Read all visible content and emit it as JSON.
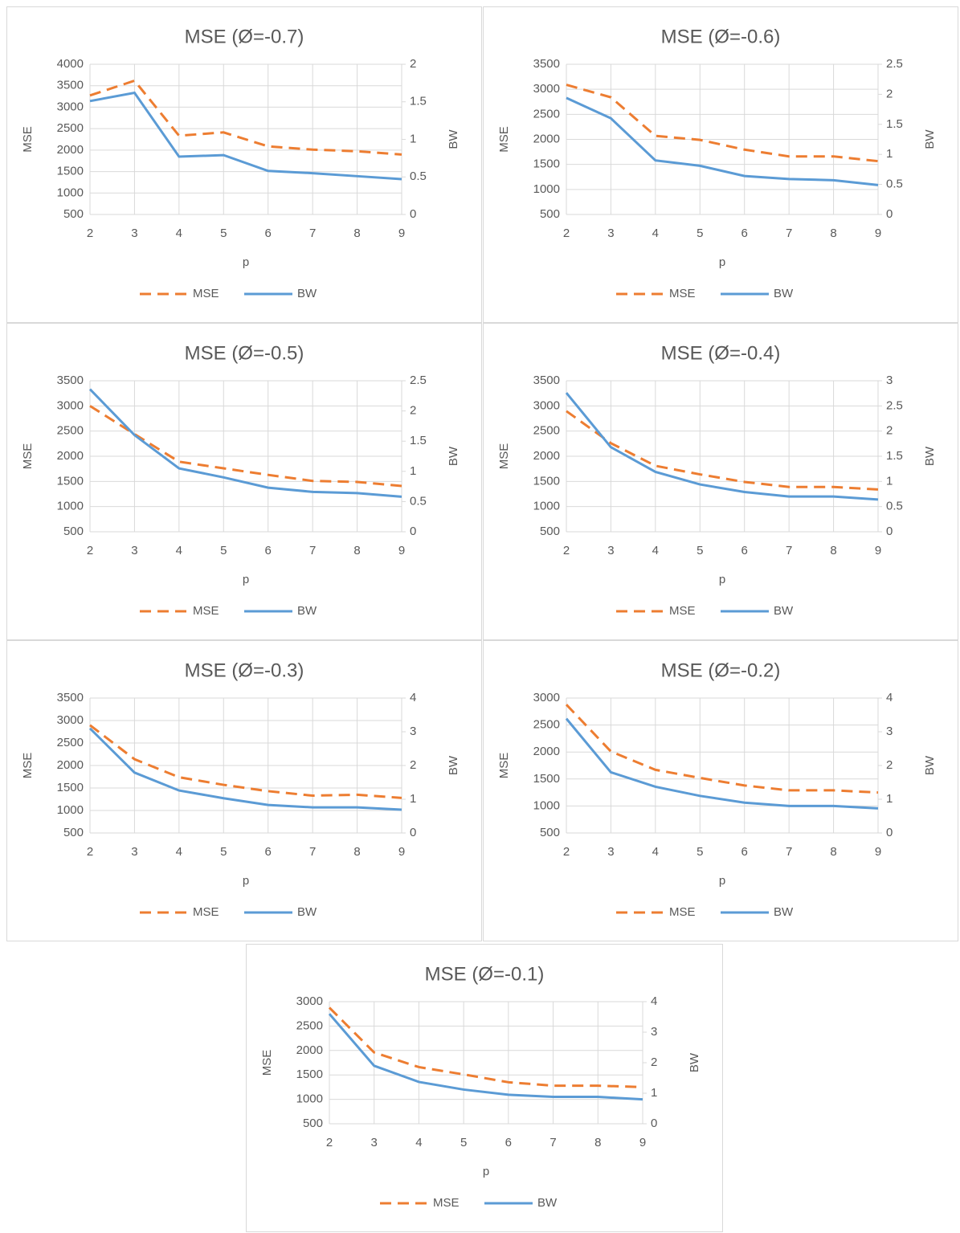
{
  "chart_data": [
    {
      "type": "line",
      "title": "MSE (Ø=-0.7)",
      "x_label": "p",
      "y_label": "MSE",
      "y2_label": "BW",
      "x": [
        2,
        3,
        4,
        5,
        6,
        7,
        8,
        9
      ],
      "xlim": [
        2,
        9
      ],
      "xticks": [
        2,
        3,
        4,
        5,
        6,
        7,
        8,
        9
      ],
      "ylim": [
        500,
        4000
      ],
      "yticks": [
        500,
        1000,
        1500,
        2000,
        2500,
        3000,
        3500,
        4000
      ],
      "y2lim": [
        0,
        2
      ],
      "y2ticks": [
        0,
        0.5,
        1,
        1.5,
        2
      ],
      "grid": true,
      "legend": "bottom",
      "series": [
        {
          "name": "MSE",
          "color": "#ed7d31",
          "line_style": "dashed",
          "values": [
            3273,
            3617,
            2336,
            2413,
            2087,
            2011,
            1973,
            1896
          ]
        },
        {
          "name": "BW",
          "color": "#5b9bd5",
          "line_style": "solid",
          "axis": "y2",
          "values": [
            1.51,
            1.62,
            0.77,
            0.79,
            0.58,
            0.55,
            0.51,
            0.47
          ]
        }
      ]
    },
    {
      "type": "line",
      "title": "MSE (Ø=-0.6)",
      "x_label": "p",
      "y_label": "MSE",
      "y2_label": "BW",
      "x": [
        2,
        3,
        4,
        5,
        6,
        7,
        8,
        9
      ],
      "xlim": [
        2,
        9
      ],
      "xticks": [
        2,
        3,
        4,
        5,
        6,
        7,
        8,
        9
      ],
      "ylim": [
        500,
        3500
      ],
      "yticks": [
        500,
        1000,
        1500,
        2000,
        2500,
        3000,
        3500
      ],
      "y2lim": [
        0,
        2.5
      ],
      "y2ticks": [
        0,
        0.5,
        1,
        1.5,
        2,
        2.5
      ],
      "grid": true,
      "legend": "bottom",
      "series": [
        {
          "name": "MSE",
          "color": "#ed7d31",
          "line_style": "dashed",
          "values": [
            3090,
            2840,
            2070,
            1990,
            1795,
            1660,
            1660,
            1565
          ]
        },
        {
          "name": "BW",
          "color": "#5b9bd5",
          "line_style": "solid",
          "axis": "y2",
          "values": [
            1.94,
            1.6,
            0.9,
            0.81,
            0.64,
            0.59,
            0.57,
            0.49
          ]
        }
      ]
    },
    {
      "type": "line",
      "title": "MSE (Ø=-0.5)",
      "x_label": "p",
      "y_label": "MSE",
      "y2_label": "BW",
      "x": [
        2,
        3,
        4,
        5,
        6,
        7,
        8,
        9
      ],
      "xlim": [
        2,
        9
      ],
      "xticks": [
        2,
        3,
        4,
        5,
        6,
        7,
        8,
        9
      ],
      "ylim": [
        500,
        3500
      ],
      "yticks": [
        500,
        1000,
        1500,
        2000,
        2500,
        3000,
        3500
      ],
      "y2lim": [
        0,
        2.5
      ],
      "y2ticks": [
        0,
        0.5,
        1,
        1.5,
        2,
        2.5
      ],
      "grid": true,
      "legend": "bottom",
      "series": [
        {
          "name": "MSE",
          "color": "#ed7d31",
          "line_style": "dashed",
          "values": [
            3000,
            2440,
            1892,
            1760,
            1630,
            1510,
            1490,
            1410
          ]
        },
        {
          "name": "BW",
          "color": "#5b9bd5",
          "line_style": "solid",
          "axis": "y2",
          "values": [
            2.36,
            1.6,
            1.05,
            0.9,
            0.73,
            0.66,
            0.64,
            0.58
          ]
        }
      ]
    },
    {
      "type": "line",
      "title": "MSE (Ø=-0.4)",
      "x_label": "p",
      "y_label": "MSE",
      "y2_label": "BW",
      "x": [
        2,
        3,
        4,
        5,
        6,
        7,
        8,
        9
      ],
      "xlim": [
        2,
        9
      ],
      "xticks": [
        2,
        3,
        4,
        5,
        6,
        7,
        8,
        9
      ],
      "ylim": [
        500,
        3500
      ],
      "yticks": [
        500,
        1000,
        1500,
        2000,
        2500,
        3000,
        3500
      ],
      "y2lim": [
        0,
        3
      ],
      "y2ticks": [
        0,
        0.5,
        1,
        1.5,
        2,
        2.5,
        3
      ],
      "grid": true,
      "legend": "bottom",
      "series": [
        {
          "name": "MSE",
          "color": "#ed7d31",
          "line_style": "dashed",
          "values": [
            2897,
            2260,
            1810,
            1640,
            1490,
            1390,
            1390,
            1340
          ]
        },
        {
          "name": "BW",
          "color": "#5b9bd5",
          "line_style": "solid",
          "axis": "y2",
          "values": [
            2.76,
            1.68,
            1.19,
            0.94,
            0.79,
            0.7,
            0.7,
            0.64
          ]
        }
      ]
    },
    {
      "type": "line",
      "title": "MSE (Ø=-0.3)",
      "x_label": "p",
      "y_label": "MSE",
      "y2_label": "BW",
      "x": [
        2,
        3,
        4,
        5,
        6,
        7,
        8,
        9
      ],
      "xlim": [
        2,
        9
      ],
      "xticks": [
        2,
        3,
        4,
        5,
        6,
        7,
        8,
        9
      ],
      "ylim": [
        500,
        3500
      ],
      "yticks": [
        500,
        1000,
        1500,
        2000,
        2500,
        3000,
        3500
      ],
      "y2lim": [
        0,
        4
      ],
      "y2ticks": [
        0,
        1,
        2,
        3,
        4
      ],
      "grid": true,
      "legend": "bottom",
      "series": [
        {
          "name": "MSE",
          "color": "#ed7d31",
          "line_style": "dashed",
          "values": [
            2897,
            2140,
            1740,
            1570,
            1430,
            1330,
            1350,
            1280
          ]
        },
        {
          "name": "BW",
          "color": "#5b9bd5",
          "line_style": "solid",
          "axis": "y2",
          "values": [
            3.1,
            1.79,
            1.26,
            1.03,
            0.83,
            0.76,
            0.76,
            0.69
          ]
        }
      ]
    },
    {
      "type": "line",
      "title": "MSE (Ø=-0.2)",
      "x_label": "p",
      "y_label": "MSE",
      "y2_label": "BW",
      "x": [
        2,
        3,
        4,
        5,
        6,
        7,
        8,
        9
      ],
      "xlim": [
        2,
        9
      ],
      "xticks": [
        2,
        3,
        4,
        5,
        6,
        7,
        8,
        9
      ],
      "ylim": [
        500,
        3000
      ],
      "yticks": [
        500,
        1000,
        1500,
        2000,
        2500,
        3000
      ],
      "y2lim": [
        0,
        4
      ],
      "y2ticks": [
        0,
        1,
        2,
        3,
        4
      ],
      "grid": true,
      "legend": "bottom",
      "series": [
        {
          "name": "MSE",
          "color": "#ed7d31",
          "line_style": "dashed",
          "values": [
            2878,
            2010,
            1670,
            1520,
            1380,
            1290,
            1290,
            1250
          ]
        },
        {
          "name": "BW",
          "color": "#5b9bd5",
          "line_style": "solid",
          "axis": "y2",
          "values": [
            3.39,
            1.8,
            1.37,
            1.1,
            0.9,
            0.8,
            0.8,
            0.73
          ]
        }
      ]
    },
    {
      "type": "line",
      "title": "MSE (Ø=-0.1)",
      "x_label": "p",
      "y_label": "MSE",
      "y2_label": "BW",
      "x": [
        2,
        3,
        4,
        5,
        6,
        7,
        8,
        9
      ],
      "xlim": [
        2,
        9
      ],
      "xticks": [
        2,
        3,
        4,
        5,
        6,
        7,
        8,
        9
      ],
      "ylim": [
        500,
        3000
      ],
      "yticks": [
        500,
        1000,
        1500,
        2000,
        2500,
        3000
      ],
      "y2lim": [
        0,
        4
      ],
      "y2ticks": [
        0,
        1,
        2,
        3,
        4
      ],
      "grid": true,
      "legend": "bottom",
      "series": [
        {
          "name": "MSE",
          "color": "#ed7d31",
          "line_style": "dashed",
          "values": [
            2878,
            1960,
            1660,
            1510,
            1350,
            1280,
            1280,
            1250
          ]
        },
        {
          "name": "BW",
          "color": "#5b9bd5",
          "line_style": "solid",
          "axis": "y2",
          "values": [
            3.6,
            1.9,
            1.37,
            1.12,
            0.95,
            0.88,
            0.88,
            0.8
          ]
        }
      ]
    }
  ]
}
